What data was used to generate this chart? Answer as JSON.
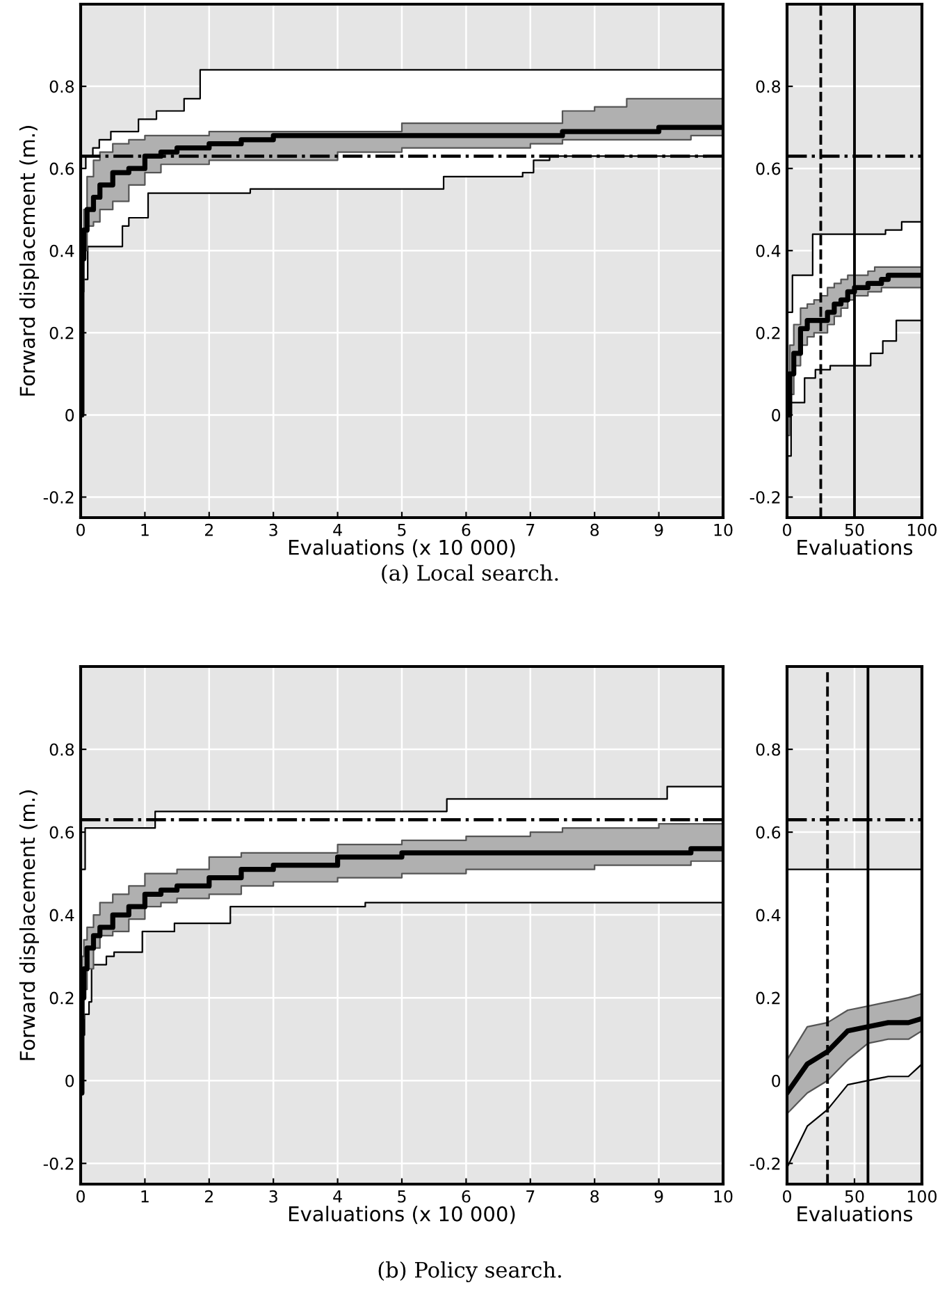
{
  "chart_data": [
    {
      "type": "step",
      "xlabel": "Evaluations (x 10 000)",
      "ylabel": "Forward displacement (m.)",
      "annotations": [
        "(a) Local search."
      ],
      "xlim": [
        0,
        10
      ],
      "xticks": [
        0,
        1,
        2,
        3,
        4,
        5,
        6,
        7,
        8,
        9,
        10
      ],
      "ylim": [
        -0.25,
        1.0
      ],
      "yticks": [
        -0.2,
        0,
        0.2,
        0.4,
        0.6,
        0.8
      ],
      "grid": true,
      "marker": "none",
      "ref_lines": [
        {
          "axis": "y",
          "value": 0.63,
          "line_style": "dashdot",
          "color": "#000000"
        }
      ],
      "series": [
        {
          "color": "#ffffff",
          "x": [
            0,
            0.08,
            0.11,
            0.19,
            0.29,
            0.47,
            0.65,
            0.75,
            0.9,
            1.05,
            1.18,
            1.61,
            1.86,
            2.64,
            5.65,
            6.88,
            7.05,
            7.3,
            10
          ],
          "values": [
            null,
            null,
            null,
            null,
            null,
            null,
            null,
            null,
            null,
            null,
            null,
            null,
            null,
            null,
            null,
            null,
            null,
            null,
            null
          ],
          "upper": [
            0.6,
            0.63,
            0.63,
            0.65,
            0.67,
            0.69,
            0.69,
            0.69,
            0.72,
            0.72,
            0.74,
            0.77,
            0.84,
            0.84,
            0.84,
            0.84,
            0.84,
            0.84,
            0.84
          ],
          "lower": [
            0.33,
            0.33,
            0.41,
            0.41,
            0.41,
            0.41,
            0.46,
            0.48,
            0.48,
            0.54,
            0.54,
            0.54,
            0.54,
            0.55,
            0.58,
            0.59,
            0.62,
            0.63,
            0.63
          ]
        },
        {
          "color": "#000000",
          "x": [
            0,
            0.02,
            0.05,
            0.1,
            0.2,
            0.3,
            0.5,
            0.75,
            1,
            1.25,
            1.5,
            2,
            2.5,
            3,
            4,
            5,
            6,
            7,
            7.5,
            8,
            8.5,
            9,
            9.5,
            10
          ],
          "values": [
            0,
            0.38,
            0.45,
            0.5,
            0.53,
            0.56,
            0.59,
            0.6,
            0.63,
            0.64,
            0.65,
            0.66,
            0.67,
            0.68,
            0.68,
            0.68,
            0.68,
            0.68,
            0.69,
            0.69,
            0.69,
            0.7,
            0.7,
            0.7
          ],
          "lower": [
            0,
            0.3,
            0.4,
            0.46,
            0.47,
            0.5,
            0.52,
            0.56,
            0.59,
            0.61,
            0.61,
            0.62,
            0.62,
            0.62,
            0.64,
            0.65,
            0.65,
            0.66,
            0.67,
            0.67,
            0.67,
            0.67,
            0.68,
            0.68
          ],
          "upper": [
            0.3,
            0.45,
            0.5,
            0.58,
            0.62,
            0.64,
            0.66,
            0.67,
            0.68,
            0.68,
            0.68,
            0.69,
            0.69,
            0.69,
            0.69,
            0.71,
            0.71,
            0.71,
            0.74,
            0.75,
            0.77,
            0.77,
            0.77,
            0.78
          ]
        }
      ]
    },
    {
      "type": "step",
      "xlabel": "Evaluations",
      "xlim": [
        0,
        100
      ],
      "xticks": [
        0,
        50,
        100
      ],
      "ylim": [
        -0.25,
        1.0
      ],
      "yticks": [
        -0.2,
        0,
        0.2,
        0.4,
        0.6,
        0.8
      ],
      "grid": true,
      "marker": "none",
      "ref_lines": [
        {
          "axis": "y",
          "value": 0.63,
          "line_style": "dashdot",
          "color": "#000000"
        },
        {
          "axis": "x",
          "value": 25,
          "line_style": "dashed",
          "color": "#000000"
        },
        {
          "axis": "x",
          "value": 50,
          "line_style": "solid",
          "color": "#000000"
        }
      ],
      "series": [
        {
          "color": "#ffffff",
          "x": [
            0,
            3,
            4,
            13,
            19,
            21,
            32,
            62,
            71,
            73,
            81,
            85,
            100
          ],
          "values": [
            null,
            null,
            null,
            null,
            null,
            null,
            null,
            null,
            null,
            null,
            null,
            null,
            null
          ],
          "upper": [
            0.25,
            0.25,
            0.34,
            0.34,
            0.44,
            0.44,
            0.44,
            0.44,
            0.44,
            0.45,
            0.45,
            0.47,
            0.47
          ],
          "lower": [
            -0.1,
            0.03,
            0.03,
            0.09,
            0.09,
            0.11,
            0.12,
            0.15,
            0.18,
            0.18,
            0.23,
            0.23,
            0.23
          ]
        },
        {
          "color": "#000000",
          "x": [
            0,
            2,
            5,
            10,
            15,
            20,
            25,
            30,
            35,
            40,
            45,
            50,
            55,
            60,
            65,
            70,
            75,
            80,
            90,
            100
          ],
          "values": [
            0,
            0.1,
            0.15,
            0.21,
            0.23,
            0.23,
            0.23,
            0.25,
            0.27,
            0.28,
            0.3,
            0.31,
            0.31,
            0.32,
            0.32,
            0.33,
            0.34,
            0.34,
            0.34,
            0.34
          ],
          "lower": [
            -0.05,
            0.05,
            0.12,
            0.17,
            0.19,
            0.2,
            0.2,
            0.22,
            0.24,
            0.26,
            0.28,
            0.29,
            0.29,
            0.3,
            0.3,
            0.31,
            0.31,
            0.31,
            0.31,
            0.31
          ],
          "upper": [
            0.05,
            0.17,
            0.22,
            0.26,
            0.27,
            0.28,
            0.29,
            0.31,
            0.32,
            0.33,
            0.34,
            0.34,
            0.34,
            0.35,
            0.36,
            0.36,
            0.36,
            0.36,
            0.36,
            0.36
          ]
        }
      ]
    },
    {
      "type": "step",
      "xlabel": "Evaluations (x 10 000)",
      "ylabel": "Forward displacement (m.)",
      "annotations": [
        "(b) Policy search."
      ],
      "xlim": [
        0,
        10
      ],
      "xticks": [
        0,
        1,
        2,
        3,
        4,
        5,
        6,
        7,
        8,
        9,
        10
      ],
      "ylim": [
        -0.25,
        1.0
      ],
      "yticks": [
        -0.2,
        0,
        0.2,
        0.4,
        0.6,
        0.8
      ],
      "grid": true,
      "marker": "none",
      "ref_lines": [
        {
          "axis": "y",
          "value": 0.63,
          "line_style": "dashdot",
          "color": "#000000"
        }
      ],
      "series": [
        {
          "color": "#ffffff",
          "x": [
            0,
            0.03,
            0.06,
            0.07,
            0.13,
            0.17,
            0.4,
            0.52,
            0.96,
            1.16,
            1.46,
            2.33,
            4.43,
            5.7,
            9.13,
            10
          ],
          "values": [
            null,
            null,
            null,
            null,
            null,
            null,
            null,
            null,
            null,
            null,
            null,
            null,
            null,
            null,
            null,
            null
          ],
          "upper": [
            0.51,
            0.51,
            0.51,
            0.61,
            0.61,
            0.61,
            0.61,
            0.61,
            0.61,
            0.65,
            0.65,
            0.65,
            0.65,
            0.68,
            0.71,
            0.71
          ],
          "lower": [
            -0.03,
            0.11,
            0.16,
            0.16,
            0.19,
            0.28,
            0.3,
            0.31,
            0.36,
            0.36,
            0.38,
            0.42,
            0.43,
            0.43,
            0.43,
            0.43
          ]
        },
        {
          "color": "#000000",
          "x": [
            0,
            0.02,
            0.05,
            0.1,
            0.2,
            0.3,
            0.5,
            0.75,
            1,
            1.25,
            1.5,
            2,
            2.5,
            3,
            4,
            5,
            6,
            7,
            7.5,
            8,
            8.5,
            9,
            9.5,
            10
          ],
          "values": [
            -0.03,
            0.2,
            0.27,
            0.32,
            0.35,
            0.37,
            0.4,
            0.42,
            0.45,
            0.46,
            0.47,
            0.49,
            0.51,
            0.52,
            0.54,
            0.55,
            0.55,
            0.55,
            0.55,
            0.55,
            0.55,
            0.55,
            0.56,
            0.56
          ],
          "lower": [
            -0.03,
            0.15,
            0.22,
            0.27,
            0.32,
            0.35,
            0.36,
            0.39,
            0.42,
            0.43,
            0.44,
            0.45,
            0.47,
            0.48,
            0.49,
            0.5,
            0.51,
            0.51,
            0.51,
            0.52,
            0.52,
            0.52,
            0.53,
            0.53
          ],
          "upper": [
            0.1,
            0.3,
            0.34,
            0.37,
            0.4,
            0.43,
            0.45,
            0.47,
            0.5,
            0.5,
            0.51,
            0.54,
            0.55,
            0.55,
            0.57,
            0.58,
            0.59,
            0.6,
            0.61,
            0.61,
            0.61,
            0.62,
            0.62,
            0.62
          ]
        }
      ]
    },
    {
      "type": "line",
      "xlabel": "Evaluations",
      "xlim": [
        0,
        100
      ],
      "xticks": [
        0,
        50,
        100
      ],
      "ylim": [
        -0.25,
        1.0
      ],
      "yticks": [
        -0.2,
        0,
        0.2,
        0.4,
        0.6,
        0.8
      ],
      "grid": true,
      "marker": "none",
      "ref_lines": [
        {
          "axis": "y",
          "value": 0.63,
          "line_style": "dashdot",
          "color": "#000000"
        },
        {
          "axis": "x",
          "value": 30,
          "line_style": "dashed",
          "color": "#000000"
        },
        {
          "axis": "x",
          "value": 60,
          "line_style": "solid",
          "color": "#000000"
        }
      ],
      "series": [
        {
          "color": "#ffffff",
          "x": [
            0,
            15,
            30,
            45,
            60,
            75,
            90,
            100
          ],
          "values": [
            null,
            null,
            null,
            null,
            null,
            null,
            null,
            null
          ],
          "upper": [
            0.51,
            0.51,
            0.51,
            0.51,
            0.51,
            0.51,
            0.51,
            0.51
          ],
          "lower": [
            -0.21,
            -0.11,
            -0.07,
            -0.01,
            0.0,
            0.01,
            0.01,
            0.04
          ]
        },
        {
          "color": "#000000",
          "x": [
            0,
            15,
            30,
            45,
            60,
            75,
            90,
            100
          ],
          "values": [
            -0.03,
            0.04,
            0.07,
            0.12,
            0.13,
            0.14,
            0.14,
            0.15
          ],
          "lower": [
            -0.08,
            -0.03,
            0.0,
            0.05,
            0.09,
            0.1,
            0.1,
            0.12
          ],
          "upper": [
            0.05,
            0.13,
            0.14,
            0.17,
            0.18,
            0.19,
            0.2,
            0.21
          ]
        }
      ]
    }
  ]
}
